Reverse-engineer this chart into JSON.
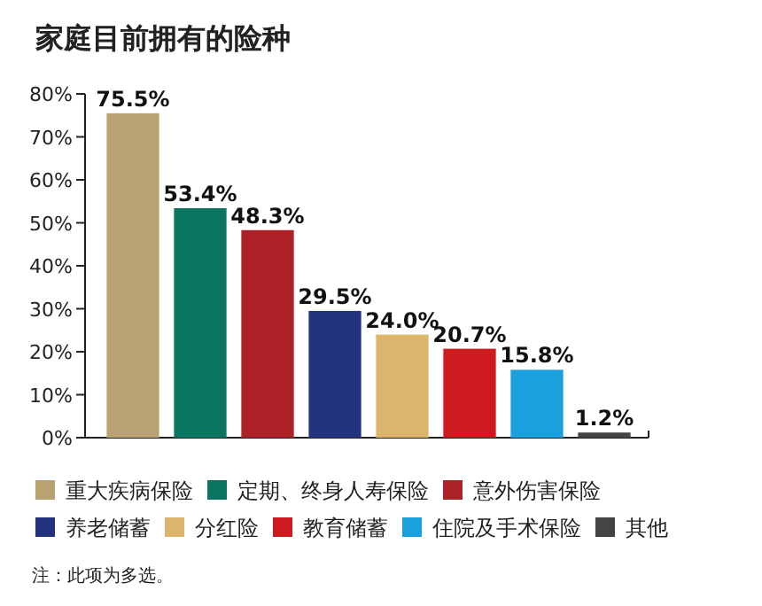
{
  "chart_data": {
    "type": "bar",
    "title": "家庭目前拥有的险种",
    "categories": [
      null,
      null,
      null,
      null,
      null,
      null,
      null,
      null
    ],
    "series": [
      {
        "name": "重大疾病保险",
        "color": "#b8a272",
        "values": [
          75.5,
          null,
          null,
          null,
          null,
          null,
          null,
          null
        ],
        "value_labels": [
          "75.5%",
          null,
          null,
          null,
          null,
          null,
          null,
          null
        ]
      },
      {
        "name": "定期、终身人寿保险",
        "color": "#0a7560",
        "values": [
          null,
          53.4,
          null,
          null,
          null,
          null,
          null,
          null
        ],
        "value_labels": [
          null,
          "53.4%",
          null,
          null,
          null,
          null,
          null,
          null
        ]
      },
      {
        "name": "意外伤害保险",
        "color": "#ac2125",
        "values": [
          null,
          null,
          48.3,
          null,
          null,
          null,
          null,
          null
        ],
        "value_labels": [
          null,
          null,
          "48.3%",
          null,
          null,
          null,
          null,
          null
        ]
      },
      {
        "name": "养老储蓄",
        "color": "#24337e",
        "values": [
          null,
          null,
          null,
          29.5,
          null,
          null,
          null,
          null
        ],
        "value_labels": [
          null,
          null,
          null,
          "29.5%",
          null,
          null,
          null,
          null
        ]
      },
      {
        "name": "分红险",
        "color": "#dcb46c",
        "values": [
          null,
          null,
          null,
          null,
          24.0,
          null,
          null,
          null
        ],
        "value_labels": [
          null,
          null,
          null,
          null,
          "24.0%",
          null,
          null,
          null
        ]
      },
      {
        "name": "教育储蓄",
        "color": "#cc1a1f",
        "values": [
          null,
          null,
          null,
          null,
          null,
          20.7,
          null,
          null
        ],
        "value_labels": [
          null,
          null,
          null,
          null,
          null,
          "20.7%",
          null,
          null
        ]
      },
      {
        "name": "住院及手术保险",
        "color": "#1aa0dc",
        "values": [
          null,
          null,
          null,
          null,
          null,
          null,
          15.8,
          null
        ],
        "value_labels": [
          null,
          null,
          null,
          null,
          null,
          null,
          "15.8%",
          null
        ]
      },
      {
        "name": "其他",
        "color": "#444444",
        "values": [
          null,
          null,
          null,
          null,
          null,
          null,
          null,
          1.2
        ],
        "value_labels": [
          null,
          null,
          null,
          null,
          null,
          null,
          null,
          "1.2%"
        ]
      }
    ],
    "ylim": [
      0,
      80
    ],
    "yticks": [
      {
        "value": 0,
        "label": "0%"
      },
      {
        "value": 10,
        "label": "10%"
      },
      {
        "value": 20,
        "label": "20%"
      },
      {
        "value": 30,
        "label": "30%"
      },
      {
        "value": 40,
        "label": "40%"
      },
      {
        "value": 50,
        "label": "50%"
      },
      {
        "value": 60,
        "label": "60%"
      },
      {
        "value": 70,
        "label": "70%"
      },
      {
        "value": 80,
        "label": "80%"
      }
    ],
    "tick_labels": "y",
    "legend": "bottom",
    "grid": false,
    "annotations": [
      "注：此项为多选。"
    ]
  }
}
